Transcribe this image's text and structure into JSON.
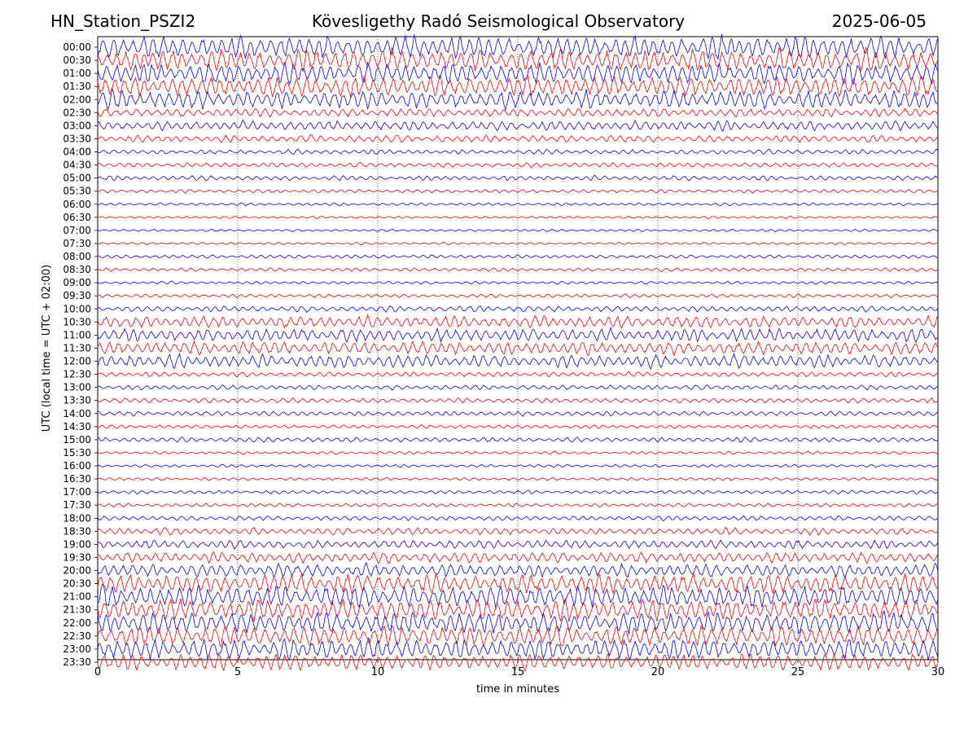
{
  "header": {
    "station": "HN_Station_PSZI2",
    "observatory": "Kövesligethy Radó Seismological Observatory",
    "date": "2025-06-05"
  },
  "chart_data": {
    "type": "line",
    "title": "Kövesligethy Radó Seismological Observatory",
    "xlabel": "time in minutes",
    "ylabel": "UTC (local time = UTC + 02:00)",
    "xlim": [
      0,
      30
    ],
    "xticks": [
      0,
      5,
      10,
      15,
      20,
      25,
      30
    ],
    "xgrid": "dotted vertical lines at 5-minute intervals",
    "row_labels": [
      "00:00",
      "00:30",
      "01:00",
      "01:30",
      "02:00",
      "02:30",
      "03:00",
      "03:30",
      "04:00",
      "04:30",
      "05:00",
      "05:30",
      "06:00",
      "06:30",
      "07:00",
      "07:30",
      "08:00",
      "08:30",
      "09:00",
      "09:30",
      "10:00",
      "10:30",
      "11:00",
      "11:30",
      "12:00",
      "12:30",
      "13:00",
      "13:30",
      "14:00",
      "14:30",
      "15:00",
      "15:30",
      "16:00",
      "16:30",
      "17:00",
      "17:30",
      "18:00",
      "18:30",
      "19:00",
      "19:30",
      "20:00",
      "20:30",
      "21:00",
      "21:30",
      "22:00",
      "22:30",
      "23:00",
      "23:30"
    ],
    "row_colors": [
      "#0000ff",
      "#ff0000"
    ],
    "relative_amplitude": [
      0.95,
      0.9,
      0.85,
      0.85,
      0.75,
      0.35,
      0.4,
      0.3,
      0.2,
      0.2,
      0.2,
      0.15,
      0.12,
      0.1,
      0.1,
      0.1,
      0.15,
      0.15,
      0.12,
      0.15,
      0.25,
      0.5,
      0.55,
      0.55,
      0.55,
      0.2,
      0.2,
      0.2,
      0.2,
      0.15,
      0.2,
      0.12,
      0.12,
      0.12,
      0.15,
      0.15,
      0.2,
      0.3,
      0.35,
      0.45,
      0.55,
      0.8,
      0.9,
      0.9,
      0.9,
      0.85,
      0.85,
      0.7
    ]
  }
}
